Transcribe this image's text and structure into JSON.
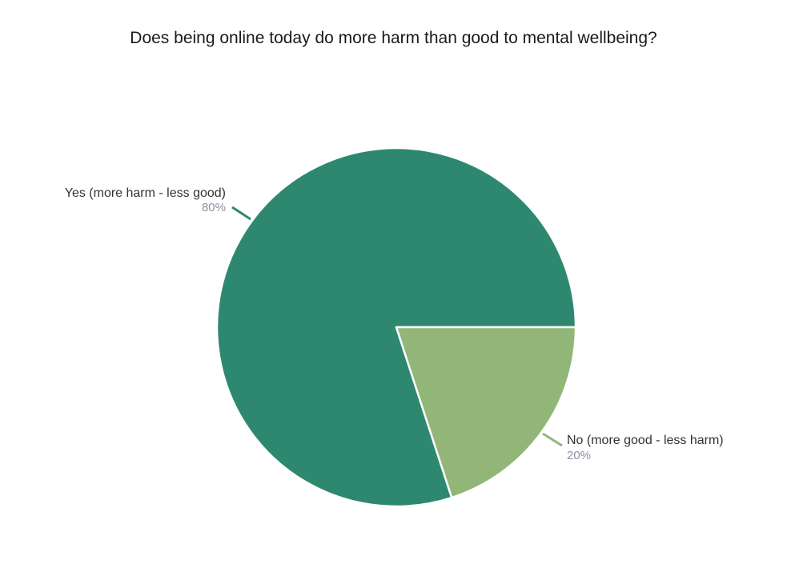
{
  "chart_data": {
    "type": "pie",
    "title": "Does being online today do more harm than good to mental wellbeing?",
    "slices": [
      {
        "label": "Yes (more harm - less good)",
        "value": 80,
        "percent_label": "80%",
        "color": "#2e8870"
      },
      {
        "label": "No (more good - less harm)",
        "value": 20,
        "percent_label": "20%",
        "color": "#92b678"
      }
    ],
    "start_angle_deg": 0,
    "direction": "counterclockwise",
    "slice_border_color": "#ffffff"
  }
}
